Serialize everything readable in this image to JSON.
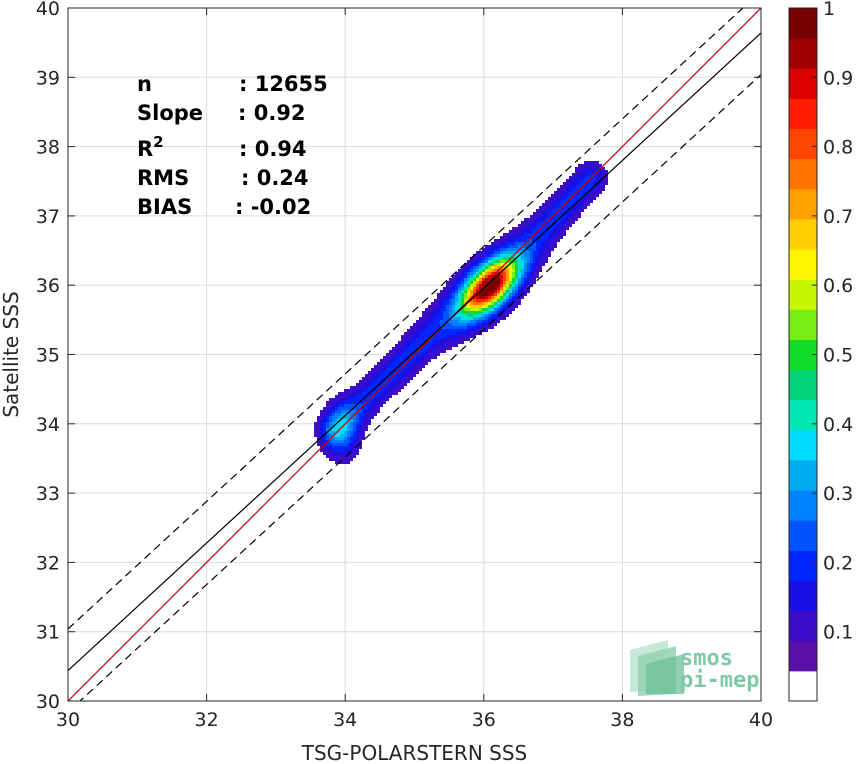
{
  "chart_data": {
    "type": "contour",
    "xlabel": "TSG-POLARSTERN SSS",
    "ylabel": "Satellite SSS",
    "xlim": [
      30,
      40
    ],
    "ylim": [
      30,
      40
    ],
    "xticks": [
      30,
      32,
      34,
      36,
      38,
      40
    ],
    "yticks": [
      30,
      31,
      32,
      33,
      34,
      35,
      36,
      37,
      38,
      39,
      40
    ],
    "grid": true,
    "stats": [
      {
        "label": "n",
        "value": ": 12655"
      },
      {
        "label": "Slope",
        "value": ": 0.92"
      },
      {
        "label": "R",
        "sup": "2",
        "value": ": 0.94"
      },
      {
        "label": "RMS",
        "value": ": 0.24"
      },
      {
        "label": "BIAS",
        "value": ": -0.02"
      }
    ],
    "lines": [
      {
        "name": "one-to-one",
        "color": "#cc0000",
        "style": "solid",
        "points": [
          [
            30,
            30
          ],
          [
            40,
            40
          ]
        ]
      },
      {
        "name": "regression",
        "color": "#000000",
        "style": "solid",
        "points": [
          [
            30,
            30.44
          ],
          [
            40,
            39.64
          ]
        ]
      },
      {
        "name": "upper-bound",
        "color": "#000000",
        "style": "dashed",
        "points": [
          [
            30,
            31.04
          ],
          [
            40,
            40.24
          ]
        ]
      },
      {
        "name": "lower-bound",
        "color": "#000000",
        "style": "dashed",
        "points": [
          [
            30,
            29.84
          ],
          [
            40,
            39.04
          ]
        ]
      }
    ],
    "density": {
      "ridge": [
        [
          33.85,
          33.9
        ],
        [
          34.6,
          34.65
        ],
        [
          35.2,
          35.25
        ],
        [
          35.7,
          35.65
        ],
        [
          36.05,
          35.95
        ],
        [
          36.5,
          36.4
        ],
        [
          37.0,
          36.95
        ],
        [
          37.55,
          37.55
        ]
      ],
      "blob_lower": {
        "center": [
          33.95,
          33.9
        ],
        "sx": 0.18,
        "sy": 0.28
      },
      "peak": {
        "center": [
          36.08,
          35.98
        ],
        "value": 1.0
      }
    },
    "colorbar": {
      "ticks": [
        0.1,
        0.2,
        0.3,
        0.4,
        0.5,
        0.6,
        0.7,
        0.8,
        0.9,
        1
      ],
      "tick_labels": [
        "0.1",
        "0.2",
        "0.3",
        "0.4",
        "0.5",
        "0.6",
        "0.7",
        "0.8",
        "0.9",
        "1"
      ],
      "range": [
        0,
        1
      ],
      "bands": [
        "#ffffff",
        "#5b0fa8",
        "#3a0ec8",
        "#1a10e6",
        "#0026ff",
        "#0055ff",
        "#0082ff",
        "#00aaf0",
        "#00dcff",
        "#00e6b4",
        "#00d275",
        "#12dc28",
        "#78ef14",
        "#c8f500",
        "#fff500",
        "#ffcd00",
        "#ffa000",
        "#ff7300",
        "#ff4600",
        "#ff1e00",
        "#dc0000",
        "#a00000",
        "#780000"
      ]
    }
  },
  "logo": {
    "line1": "smos",
    "line2": "pi-mep"
  }
}
